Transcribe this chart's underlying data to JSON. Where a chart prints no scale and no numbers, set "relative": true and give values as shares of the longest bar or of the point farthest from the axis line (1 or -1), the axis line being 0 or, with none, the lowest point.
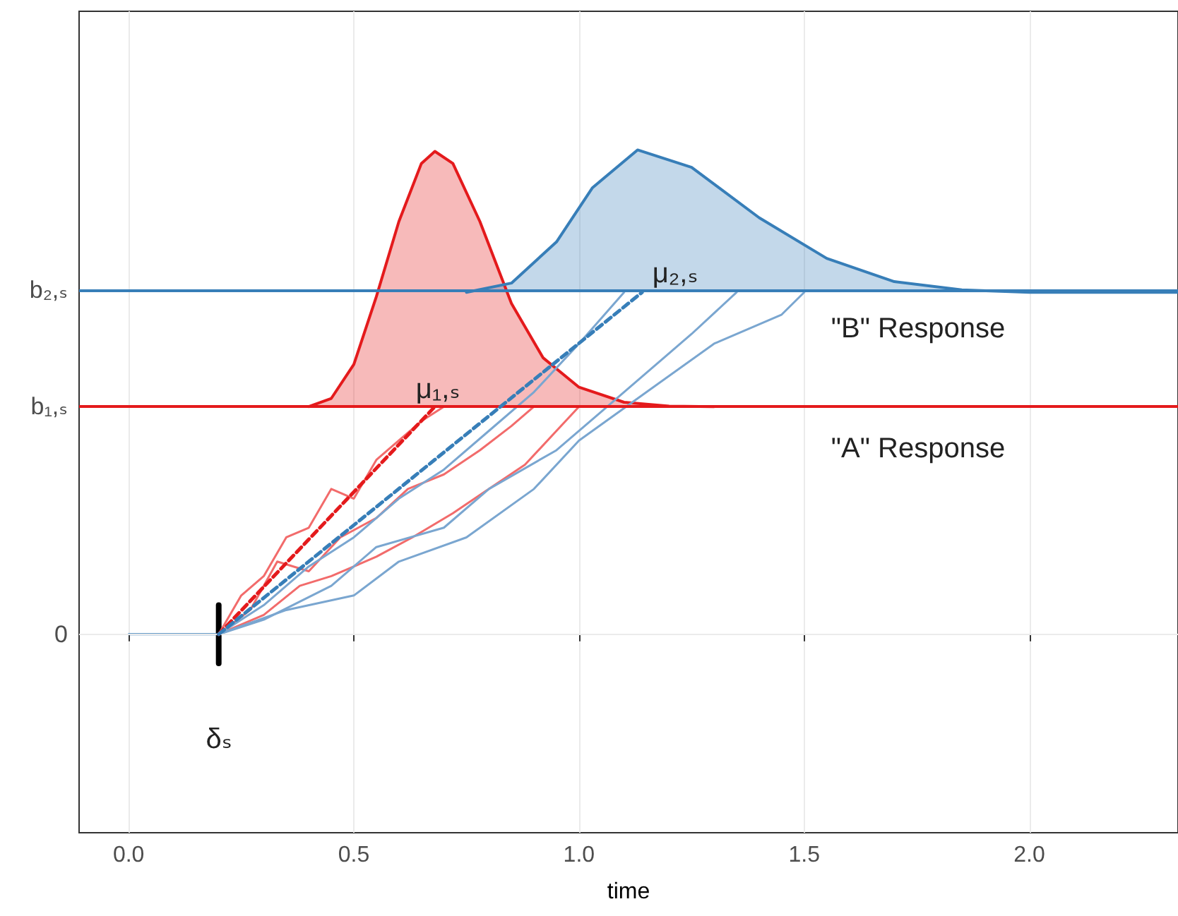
{
  "chart_data": {
    "type": "line",
    "xlabel": "time",
    "relative": true,
    "marker": "none",
    "grid": "x",
    "xlim": [
      -0.11,
      2.33
    ],
    "xticks": [
      {
        "value": 0,
        "label": "0.0"
      },
      {
        "value": 0.5,
        "label": "0.5"
      },
      {
        "value": 1,
        "label": "1.0"
      },
      {
        "value": 1.5,
        "label": "1.5"
      },
      {
        "value": 2,
        "label": "2.0"
      }
    ],
    "ref_lines": [
      {
        "axis": "y",
        "value": 0,
        "label": "0",
        "color": "#ebebeb"
      },
      {
        "axis": "y",
        "value": 0.47,
        "label": "b₁,ₛ",
        "color": "#e41a1c"
      },
      {
        "axis": "y",
        "value": 0.706,
        "label": "b₂,ₛ",
        "color": "#377eb8"
      }
    ],
    "series": [
      {
        "type": "area",
        "color": "#e41a1c",
        "x": [
          0.4,
          0.45,
          0.5,
          0.55,
          0.6,
          0.65,
          0.68,
          0.72,
          0.78,
          0.85,
          0.92,
          1.0,
          1.1,
          1.2,
          1.3
        ],
        "values": [
          0.47,
          0.487,
          0.557,
          0.697,
          0.852,
          0.972,
          0.997,
          0.972,
          0.852,
          0.683,
          0.571,
          0.51,
          0.479,
          0.471,
          0.47
        ]
      },
      {
        "type": "area",
        "color": "#377eb8",
        "x": [
          0.75,
          0.85,
          0.95,
          1.03,
          1.13,
          1.25,
          1.4,
          1.55,
          1.7,
          1.85,
          2.0,
          2.33
        ],
        "values": [
          0.706,
          0.725,
          0.81,
          0.922,
          1.0,
          0.964,
          0.86,
          0.776,
          0.728,
          0.711,
          0.706,
          0.706
        ]
      },
      {
        "color": "#377eb8",
        "x": [
          0,
          0.2
        ],
        "values": [
          0,
          0
        ]
      },
      {
        "color": "#f26b6b",
        "x": [
          0.2,
          0.25,
          0.3,
          0.35,
          0.4,
          0.45,
          0.5,
          0.55,
          0.6,
          0.65,
          0.7
        ],
        "values": [
          0,
          0.08,
          0.12,
          0.2,
          0.22,
          0.3,
          0.28,
          0.36,
          0.4,
          0.44,
          0.47
        ]
      },
      {
        "color": "#f26b6b",
        "x": [
          0.2,
          0.27,
          0.33,
          0.4,
          0.47,
          0.55,
          0.62,
          0.7,
          0.78,
          0.85,
          0.9
        ],
        "values": [
          0,
          0.05,
          0.15,
          0.13,
          0.2,
          0.24,
          0.3,
          0.33,
          0.38,
          0.43,
          0.47
        ]
      },
      {
        "color": "#f26b6b",
        "x": [
          0.2,
          0.3,
          0.38,
          0.45,
          0.55,
          0.63,
          0.72,
          0.8,
          0.88,
          0.95,
          1.0
        ],
        "values": [
          0,
          0.04,
          0.1,
          0.12,
          0.16,
          0.2,
          0.25,
          0.3,
          0.35,
          0.42,
          0.47
        ]
      },
      {
        "color": "#7aa6d0",
        "x": [
          0.2,
          0.3,
          0.4,
          0.5,
          0.6,
          0.7,
          0.8,
          0.9,
          1.0,
          1.1
        ],
        "values": [
          0,
          0.06,
          0.14,
          0.2,
          0.28,
          0.34,
          0.42,
          0.5,
          0.6,
          0.706
        ]
      },
      {
        "color": "#7aa6d0",
        "x": [
          0.2,
          0.3,
          0.45,
          0.55,
          0.7,
          0.8,
          0.95,
          1.05,
          1.15,
          1.25,
          1.35
        ],
        "values": [
          0,
          0.03,
          0.1,
          0.18,
          0.22,
          0.3,
          0.38,
          0.46,
          0.54,
          0.62,
          0.706
        ]
      },
      {
        "color": "#7aa6d0",
        "x": [
          0.2,
          0.35,
          0.5,
          0.6,
          0.75,
          0.9,
          1.0,
          1.15,
          1.3,
          1.45,
          1.5
        ],
        "values": [
          0,
          0.05,
          0.08,
          0.15,
          0.2,
          0.3,
          0.4,
          0.5,
          0.6,
          0.66,
          0.706
        ]
      },
      {
        "color": "#e41a1c",
        "line_style": "dashed",
        "x": [
          0.2,
          0.68
        ],
        "values": [
          0,
          0.47
        ]
      },
      {
        "color": "#377eb8",
        "line_style": "dashed",
        "x": [
          0.2,
          1.14
        ],
        "values": [
          0,
          0.706
        ]
      },
      {
        "color": "#000000",
        "x": [
          0.2,
          0.2
        ],
        "values": [
          -0.06,
          0.06
        ]
      }
    ],
    "annotations": [
      "μ₁,ₛ",
      "μ₂,ₛ",
      "\"B\" Response",
      "\"A\" Response",
      "δₛ"
    ]
  }
}
